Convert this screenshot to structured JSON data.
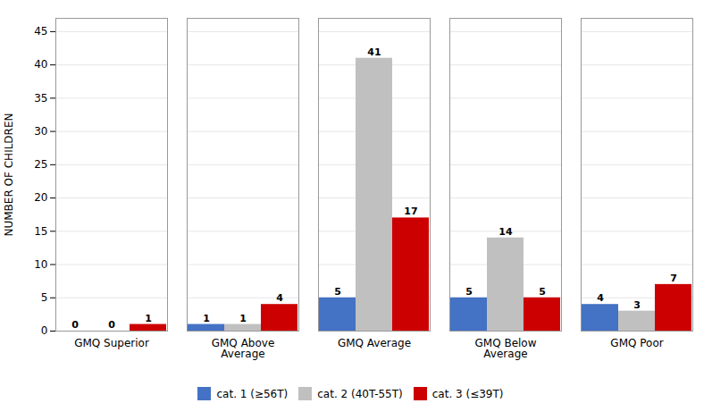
{
  "chart_data": {
    "type": "bar",
    "categories": [
      "GMQ Superior",
      "GMQ Above\nAverage",
      "GMQ Average",
      "GMQ Below\nAverage",
      "GMQ Poor"
    ],
    "series": [
      {
        "name": "cat. 1 (≥56T)",
        "color": "#4472C4",
        "values": [
          0,
          1,
          5,
          5,
          4
        ]
      },
      {
        "name": "cat. 2 (40T-55T)",
        "color": "#C0C0C0",
        "values": [
          0,
          1,
          41,
          14,
          3
        ]
      },
      {
        "name": "cat. 3 (≤39T)",
        "color": "#CC0000",
        "values": [
          1,
          4,
          17,
          5,
          7
        ]
      }
    ],
    "ylabel": "NUMBER OF CHILDREN",
    "ylim": [
      0,
      47
    ],
    "yticks": [
      0,
      5,
      10,
      15,
      20,
      25,
      30,
      35,
      40,
      45
    ],
    "grid": true,
    "legend": "bottom",
    "data_labels": true
  }
}
